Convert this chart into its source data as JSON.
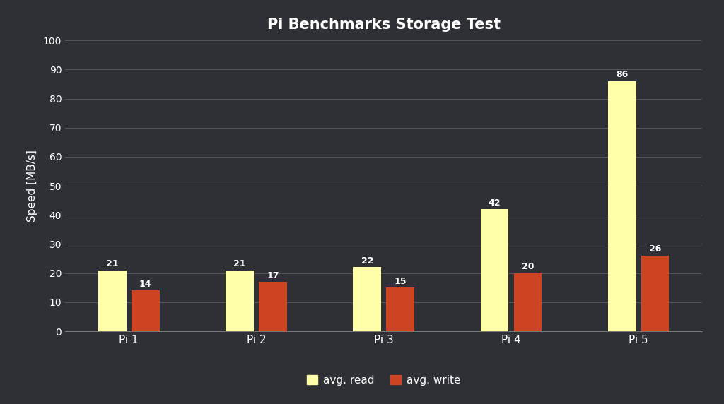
{
  "title": "Pi Benchmarks Storage Test",
  "categories": [
    "Pi 1",
    "Pi 2",
    "Pi 3",
    "Pi 4",
    "Pi 5"
  ],
  "avg_read": [
    21,
    21,
    22,
    42,
    86
  ],
  "avg_write": [
    14,
    17,
    15,
    20,
    26
  ],
  "read_color": "#ffffaa",
  "write_color": "#cc4422",
  "ylabel": "Speed [MB/s]",
  "ylim": [
    0,
    100
  ],
  "yticks": [
    0,
    10,
    20,
    30,
    40,
    50,
    60,
    70,
    80,
    90,
    100
  ],
  "background_color": "#2e3035",
  "plot_bg_color": "#2e3035",
  "grid_color": "#888888",
  "text_color": "#ffffff",
  "title_fontsize": 15,
  "label_fontsize": 11,
  "tick_fontsize": 10,
  "bar_width": 0.22,
  "legend_labels": [
    "avg. read",
    "avg. write"
  ],
  "value_label_fontsize": 9
}
